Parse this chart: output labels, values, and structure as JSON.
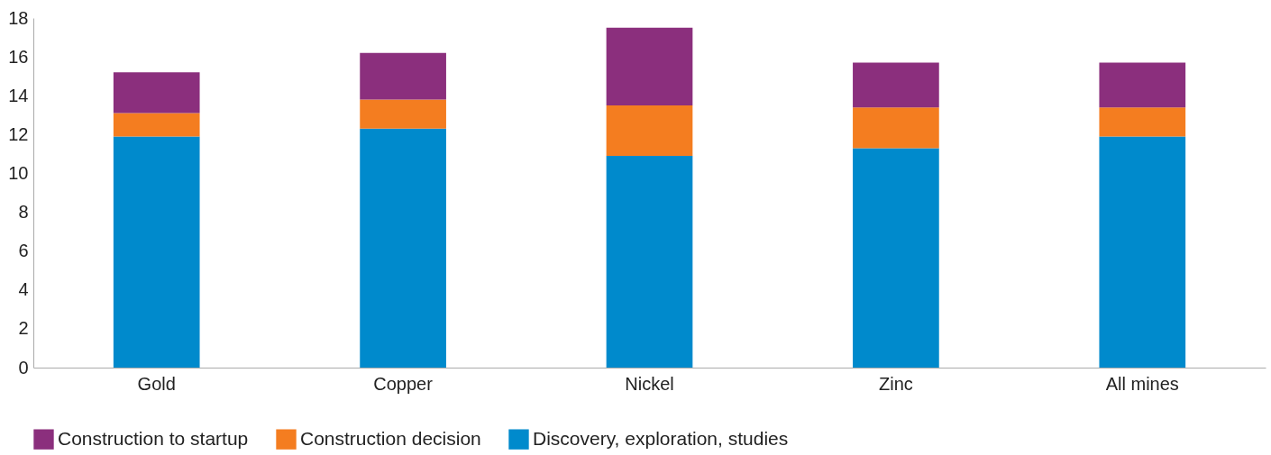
{
  "chart_data": {
    "type": "bar",
    "stacked": true,
    "categories": [
      "Gold",
      "Copper",
      "Nickel",
      "Zinc",
      "All mines"
    ],
    "series": [
      {
        "name": "Discovery, exploration, studies",
        "color": "#008acc",
        "values": [
          11.9,
          12.3,
          10.9,
          11.3,
          11.9
        ]
      },
      {
        "name": "Construction decision",
        "color": "#f47d20",
        "values": [
          1.2,
          1.5,
          2.6,
          2.1,
          1.5
        ]
      },
      {
        "name": "Construction to startup",
        "color": "#8b2f7d",
        "values": [
          2.1,
          2.4,
          4.0,
          2.3,
          2.3
        ]
      }
    ],
    "ylim": [
      0,
      18
    ],
    "yticks": [
      0,
      2,
      4,
      6,
      8,
      10,
      12,
      14,
      16,
      18
    ],
    "grid": false,
    "legend": "bottom"
  }
}
